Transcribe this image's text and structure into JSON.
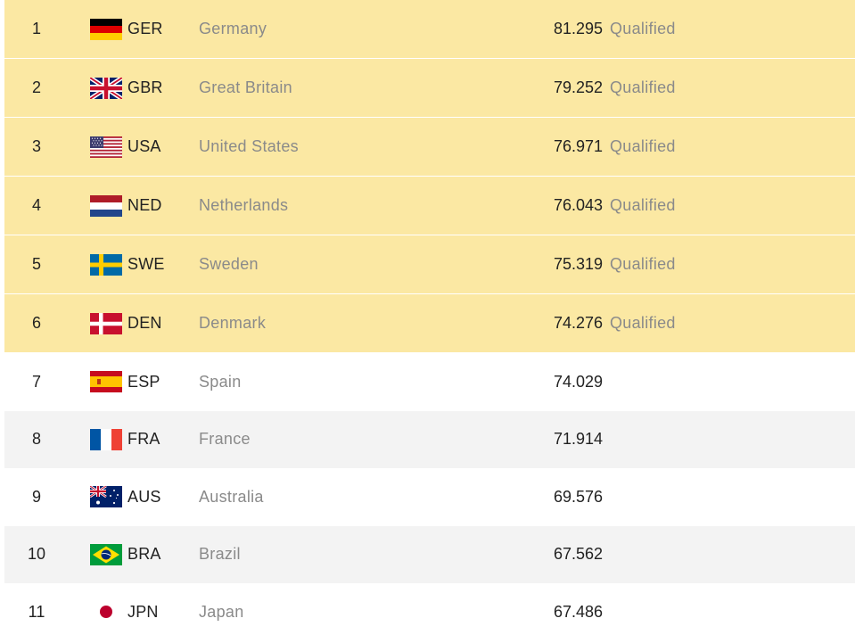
{
  "table": {
    "rows": [
      {
        "rank": "1",
        "code": "GER",
        "country": "Germany",
        "score": "81.295",
        "status": "Qualified",
        "flag_icon": "germany-flag-icon"
      },
      {
        "rank": "2",
        "code": "GBR",
        "country": "Great Britain",
        "score": "79.252",
        "status": "Qualified",
        "flag_icon": "great-britain-flag-icon"
      },
      {
        "rank": "3",
        "code": "USA",
        "country": "United States",
        "score": "76.971",
        "status": "Qualified",
        "flag_icon": "usa-flag-icon"
      },
      {
        "rank": "4",
        "code": "NED",
        "country": "Netherlands",
        "score": "76.043",
        "status": "Qualified",
        "flag_icon": "netherlands-flag-icon"
      },
      {
        "rank": "5",
        "code": "SWE",
        "country": "Sweden",
        "score": "75.319",
        "status": "Qualified",
        "flag_icon": "sweden-flag-icon"
      },
      {
        "rank": "6",
        "code": "DEN",
        "country": "Denmark",
        "score": "74.276",
        "status": "Qualified",
        "flag_icon": "denmark-flag-icon"
      },
      {
        "rank": "7",
        "code": "ESP",
        "country": "Spain",
        "score": "74.029",
        "status": "",
        "flag_icon": "spain-flag-icon"
      },
      {
        "rank": "8",
        "code": "FRA",
        "country": "France",
        "score": "71.914",
        "status": "",
        "flag_icon": "france-flag-icon"
      },
      {
        "rank": "9",
        "code": "AUS",
        "country": "Australia",
        "score": "69.576",
        "status": "",
        "flag_icon": "australia-flag-icon"
      },
      {
        "rank": "10",
        "code": "BRA",
        "country": "Brazil",
        "score": "67.562",
        "status": "",
        "flag_icon": "brazil-flag-icon"
      },
      {
        "rank": "11",
        "code": "JPN",
        "country": "Japan",
        "score": "67.486",
        "status": "",
        "flag_icon": "japan-flag-icon"
      }
    ]
  },
  "colors": {
    "qualified_row": "#fbe8a3",
    "alt_row": "#f3f3f3",
    "muted_text": "#8a8a8a"
  }
}
